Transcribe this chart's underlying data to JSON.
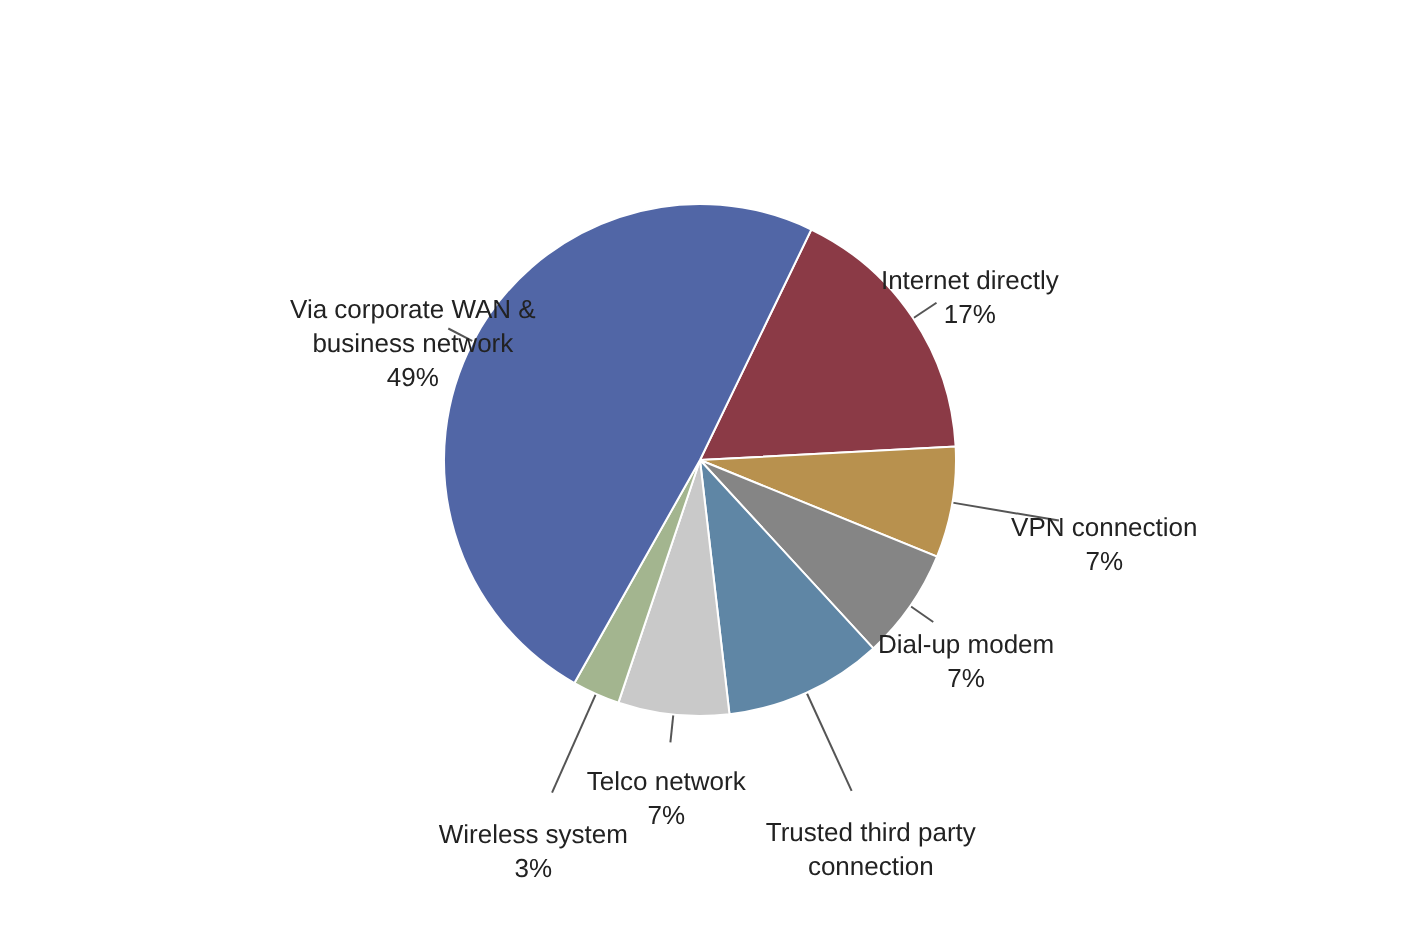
{
  "chart_data": {
    "type": "pie",
    "categories": [
      "Internet directly",
      "VPN connection",
      "Dial-up modem",
      "Trusted third party connection",
      "Telco network",
      "Wireless system",
      "Via corporate WAN & business network"
    ],
    "values": [
      17,
      7,
      7,
      10,
      7,
      3,
      49
    ],
    "colors": [
      "#8b3a46",
      "#b8914e",
      "#858585",
      "#5f86a5",
      "#c9c9c9",
      "#a3b58f",
      "#5166a6"
    ],
    "value_labels": [
      "17%",
      "7%",
      "7%",
      null,
      "7%",
      "3%",
      "49%"
    ],
    "legend": false
  }
}
